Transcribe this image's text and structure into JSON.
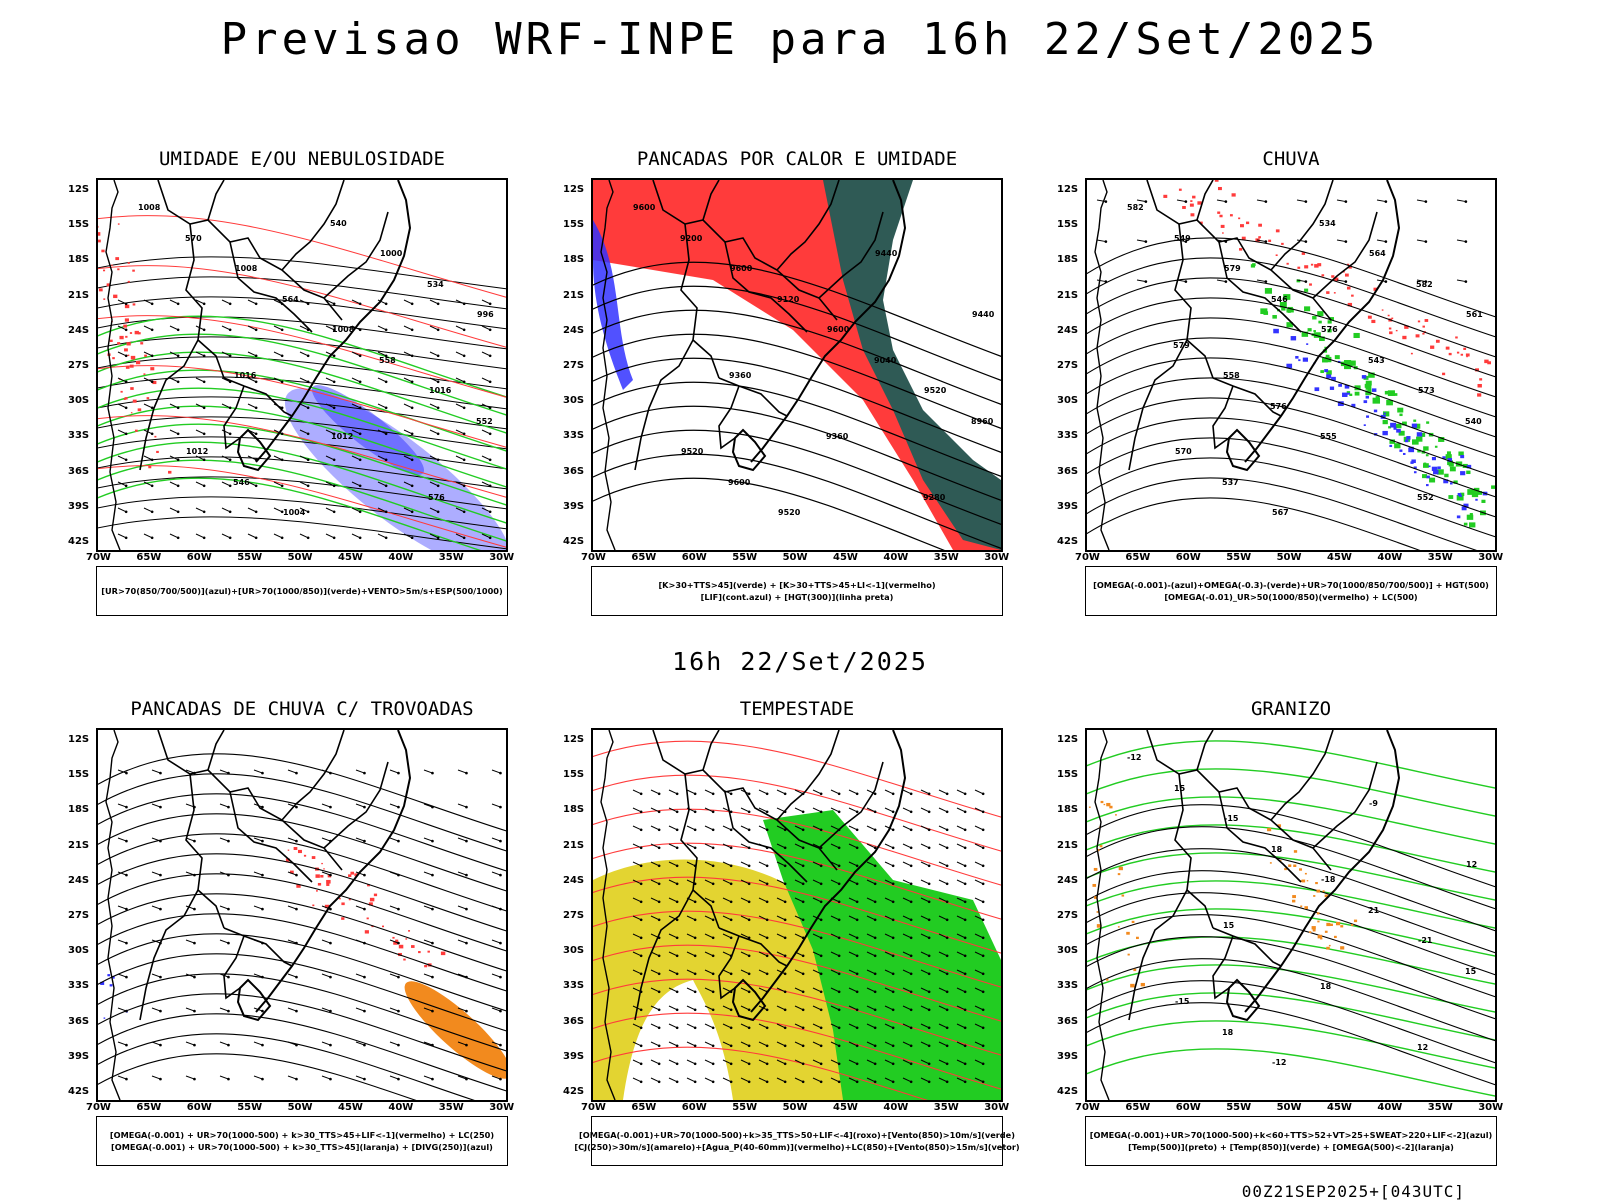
{
  "header": {
    "title": "Previsao WRF-INPE  para 16h 22/Set/2025",
    "middle_time": "16h 22/Set/2025",
    "footer_stamp": "00Z21SEP2025+[043UTC]"
  },
  "axes": {
    "lat_labels": [
      "12S",
      "15S",
      "18S",
      "21S",
      "24S",
      "27S",
      "30S",
      "33S",
      "36S",
      "39S",
      "42S"
    ],
    "lon_labels": [
      "70W",
      "65W",
      "60W",
      "55W",
      "50W",
      "45W",
      "40W",
      "35W",
      "30W"
    ]
  },
  "colors": {
    "red": "#ff3b3b",
    "green": "#22cc22",
    "blue": "#3333ff",
    "light_blue": "#9999ff",
    "dark_teal": "#2f5a55",
    "orange": "#f28a1e",
    "yellow": "#e3d431",
    "purple": "#cc33cc"
  },
  "panels": [
    {
      "id": "umidade",
      "title": "UMIDADE E/OU NEBULOSIDADE",
      "legend": [
        "[UR>70(850/700/500)](azul)+[UR>70(1000/850)](verde)+VENTO>5m/s+ESP(500/1000)"
      ],
      "contour_labels": [
        "1008",
        "1008",
        "1008",
        "1016",
        "1012",
        "1004",
        "1000",
        "996",
        "1016",
        "1012",
        "576",
        "570",
        "564",
        "558",
        "552",
        "546",
        "540",
        "534"
      ]
    },
    {
      "id": "pancadas_calor",
      "title": "PANCADAS POR CALOR E UMIDADE",
      "legend": [
        "[K>30+TTS>45](verde) + [K>30+TTS>45+LI<-1](vermelho)",
        "[LIF](cont.azul) + [HGT(300)](linha preta)"
      ],
      "contour_labels": [
        "9600",
        "9600",
        "9600",
        "9520",
        "9520",
        "9520",
        "9440",
        "9440",
        "9360",
        "9360",
        "9280",
        "9200",
        "9120",
        "9040",
        "8960",
        "9600"
      ]
    },
    {
      "id": "chuva",
      "title": "CHUVA",
      "legend": [
        "[OMEGA(-0.001)-(azul)+OMEGA(-0.3)-(verde)+UR>70(1000/850/700/500)] + HGT(500)",
        "[OMEGA(-0.01)_UR>50(1000/850)(vermelho) + LC(500)"
      ],
      "contour_labels": [
        "582",
        "579",
        "576",
        "573",
        "570",
        "567",
        "564",
        "561",
        "558",
        "555",
        "552",
        "549",
        "546",
        "543",
        "540",
        "537",
        "534",
        "582",
        "579",
        "576"
      ]
    },
    {
      "id": "trovoadas",
      "title": "PANCADAS DE CHUVA C/ TROVOADAS",
      "legend": [
        "[OMEGA(-0.001) + UR>70(1000-500) + k>30_TTS>45+LIF<-1](vermelho) + LC(250)",
        "[OMEGA(-0.001) + UR>70(1000-500) + k>30_TTS>45](laranja) + [DIVG(250)](azul)"
      ],
      "contour_labels": []
    },
    {
      "id": "tempestade",
      "title": "TEMPESTADE",
      "legend": [
        "[OMEGA(-0.001)+UR>70(1000-500)+k>35_TTS>50+LIF<-4](roxo)+[Vento(850)>10m/s](verde)",
        "[CJ(250)>30m/s](amarelo)+[Agua_P(40-60mm)](vermelho)+LC(850)+[Vento(850)>15m/s](vetor)"
      ],
      "contour_labels": []
    },
    {
      "id": "granizo",
      "title": "GRANIZO",
      "legend": [
        "[OMEGA(-0.001)+UR>70(1000-500)+k<60+TTS>52+VT>25+SWEAT>220+LIF<-2](azul)",
        "[Temp(500)](preto) + [Temp(850)](verde) + [OMEGA(500)<-2](laranja)"
      ],
      "contour_labels": [
        "-12",
        "-15",
        "-18",
        "-21",
        "-15",
        "-12",
        "-9",
        "12",
        "15",
        "18",
        "12",
        "15",
        "18",
        "21",
        "15",
        "18"
      ]
    }
  ]
}
